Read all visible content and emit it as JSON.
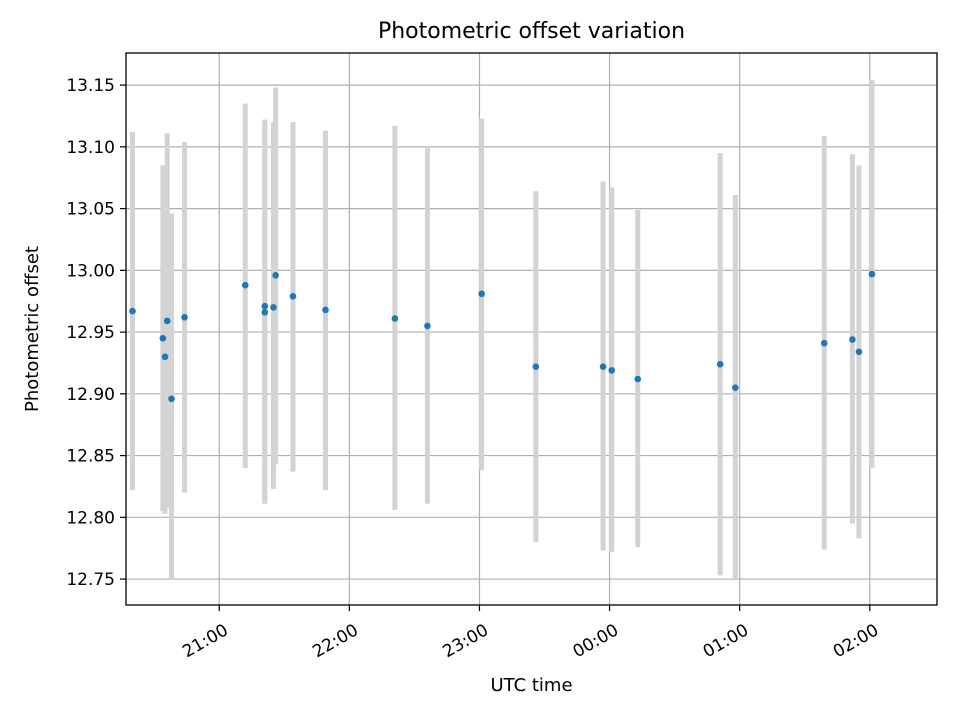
{
  "chart_data": {
    "type": "scatter",
    "title": "Photometric offset variation",
    "xlabel": "UTC time",
    "ylabel": "Photometric offset",
    "xlim": [
      "20:17",
      "02:31"
    ],
    "ylim": [
      12.729,
      13.176
    ],
    "grid": true,
    "x_ticks": [
      "21:00",
      "22:00",
      "23:00",
      "00:00",
      "01:00",
      "02:00"
    ],
    "y_ticks": [
      "12.75",
      "12.80",
      "12.85",
      "12.90",
      "12.95",
      "13.00",
      "13.05",
      "13.10",
      "13.15"
    ],
    "colors": {
      "point": "#1f77b4",
      "errorbar": "#d3d3d3",
      "grid": "#b0b0b0"
    },
    "series": [
      {
        "points": [
          {
            "t": "20:20",
            "y": 12.967,
            "lo": 12.822,
            "hi": 13.112
          },
          {
            "t": "20:34",
            "y": 12.945,
            "lo": 12.805,
            "hi": 13.085
          },
          {
            "t": "20:35",
            "y": 12.93,
            "lo": 12.803,
            "hi": 13.059
          },
          {
            "t": "20:36",
            "y": 12.959,
            "lo": 12.808,
            "hi": 13.111
          },
          {
            "t": "20:38",
            "y": 12.896,
            "lo": 12.75,
            "hi": 13.046
          },
          {
            "t": "20:44",
            "y": 12.962,
            "lo": 12.82,
            "hi": 13.104
          },
          {
            "t": "21:12",
            "y": 12.988,
            "lo": 12.84,
            "hi": 13.135
          },
          {
            "t": "21:21",
            "y": 12.966,
            "lo": 12.811,
            "hi": 13.122
          },
          {
            "t": "21:21",
            "y": 12.971,
            "lo": 12.814,
            "hi": 13.118
          },
          {
            "t": "21:25",
            "y": 12.97,
            "lo": 12.823,
            "hi": 13.12
          },
          {
            "t": "21:26",
            "y": 12.996,
            "lo": 12.843,
            "hi": 13.148
          },
          {
            "t": "21:34",
            "y": 12.979,
            "lo": 12.837,
            "hi": 13.12
          },
          {
            "t": "21:49",
            "y": 12.968,
            "lo": 12.822,
            "hi": 13.113
          },
          {
            "t": "22:21",
            "y": 12.961,
            "lo": 12.806,
            "hi": 13.117
          },
          {
            "t": "22:36",
            "y": 12.955,
            "lo": 12.811,
            "hi": 13.099
          },
          {
            "t": "23:01",
            "y": 12.981,
            "lo": 12.838,
            "hi": 13.123
          },
          {
            "t": "23:26",
            "y": 12.922,
            "lo": 12.78,
            "hi": 13.064
          },
          {
            "t": "23:57",
            "y": 12.922,
            "lo": 12.773,
            "hi": 13.072
          },
          {
            "t": "00:01",
            "y": 12.919,
            "lo": 12.772,
            "hi": 13.067
          },
          {
            "t": "00:13",
            "y": 12.912,
            "lo": 12.776,
            "hi": 13.049
          },
          {
            "t": "00:51",
            "y": 12.924,
            "lo": 12.753,
            "hi": 13.095
          },
          {
            "t": "00:58",
            "y": 12.905,
            "lo": 12.749,
            "hi": 13.061
          },
          {
            "t": "01:39",
            "y": 12.941,
            "lo": 12.774,
            "hi": 13.109
          },
          {
            "t": "01:52",
            "y": 12.944,
            "lo": 12.795,
            "hi": 13.094
          },
          {
            "t": "01:55",
            "y": 12.934,
            "lo": 12.783,
            "hi": 13.085
          },
          {
            "t": "02:01",
            "y": 12.997,
            "lo": 12.84,
            "hi": 13.154
          }
        ]
      }
    ]
  }
}
